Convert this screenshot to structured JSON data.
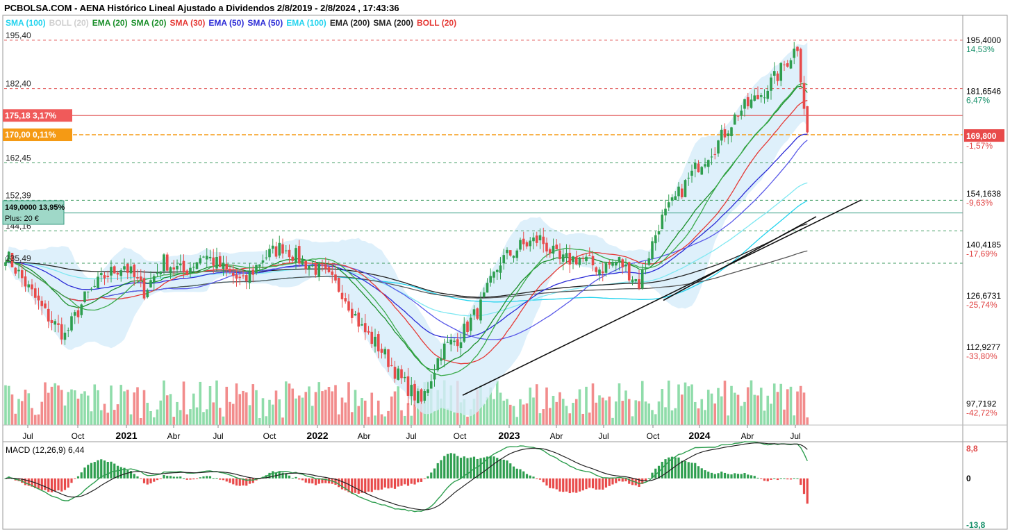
{
  "title": "PCBOLSA.COM - AENA Histórico Lineal Ajustado a Dividendos 2/8/2019 - 2/8/2024 , 17:43:36",
  "legend": [
    {
      "label": "SMA (100)",
      "color": "#22d3ee"
    },
    {
      "label": "BOLL (20)",
      "color": "#cfcfcf"
    },
    {
      "label": "EMA (20)",
      "color": "#1a8f2a"
    },
    {
      "label": "SMA (20)",
      "color": "#1a8f2a"
    },
    {
      "label": "SMA (30)",
      "color": "#e53935"
    },
    {
      "label": "EMA (50)",
      "color": "#2b2bd6"
    },
    {
      "label": "SMA (50)",
      "color": "#2b2bd6"
    },
    {
      "label": "EMA (100)",
      "color": "#22d3ee"
    },
    {
      "label": "EMA (200)",
      "color": "#222222"
    },
    {
      "label": "SMA (200)",
      "color": "#222222"
    },
    {
      "label": "BOLL (20)",
      "color": "#e53935"
    }
  ],
  "chart_data": {
    "type": "candlestick",
    "ylim": [
      92,
      198
    ],
    "x_ticks": [
      {
        "label": "Jul",
        "bold": false
      },
      {
        "label": "Oct",
        "bold": false
      },
      {
        "label": "2021",
        "bold": true
      },
      {
        "label": "Abr",
        "bold": false
      },
      {
        "label": "Jul",
        "bold": false
      },
      {
        "label": "Oct",
        "bold": false
      },
      {
        "label": "2022",
        "bold": true
      },
      {
        "label": "Abr",
        "bold": false
      },
      {
        "label": "Jul",
        "bold": false
      },
      {
        "label": "Oct",
        "bold": false
      },
      {
        "label": "2023",
        "bold": true
      },
      {
        "label": "Abr",
        "bold": false
      },
      {
        "label": "Jul",
        "bold": false
      },
      {
        "label": "Oct",
        "bold": false
      },
      {
        "label": "2024",
        "bold": true
      },
      {
        "label": "Abr",
        "bold": false
      },
      {
        "label": "Jul",
        "bold": false
      }
    ],
    "right_axis": [
      {
        "price": "195,4000",
        "pct": "14,53%",
        "dir": "up"
      },
      {
        "price": "181,6546",
        "pct": "6,47%",
        "dir": "up"
      },
      {
        "price": "154,1638",
        "pct": "-9,63%",
        "dir": "down"
      },
      {
        "price": "140,4185",
        "pct": "-17,69%",
        "dir": "down"
      },
      {
        "price": "126,6731",
        "pct": "-25,74%",
        "dir": "down"
      },
      {
        "price": "112,9277",
        "pct": "-33,80%",
        "dir": "down"
      },
      {
        "price": "97,7192",
        "pct": "-42,72%",
        "dir": "down"
      }
    ],
    "current_price": "169,800",
    "left_levels": [
      "195,40",
      "182,40",
      "162,45",
      "152,39",
      "144,16",
      "135,49"
    ],
    "markers": [
      {
        "label": "175,18  3,17%",
        "color": "#f05a5a"
      },
      {
        "label": "170,00  0,11%",
        "color": "#f59a14"
      },
      {
        "label": "149,0000  13,95%",
        "color": "#9fd8c8"
      },
      {
        "label": "Plus: 20 €",
        "color": "#9fd8c8"
      }
    ],
    "anchors": [
      [
        0,
        138
      ],
      [
        6,
        130
      ],
      [
        12,
        122
      ],
      [
        18,
        116
      ],
      [
        24,
        126
      ],
      [
        30,
        132
      ],
      [
        36,
        135
      ],
      [
        42,
        128
      ],
      [
        48,
        136
      ],
      [
        54,
        133
      ],
      [
        60,
        138
      ],
      [
        66,
        134
      ],
      [
        72,
        130
      ],
      [
        78,
        137
      ],
      [
        84,
        140
      ],
      [
        90,
        136
      ],
      [
        96,
        133
      ],
      [
        102,
        128
      ],
      [
        108,
        118
      ],
      [
        114,
        112
      ],
      [
        120,
        104
      ],
      [
        126,
        98
      ],
      [
        132,
        112
      ],
      [
        138,
        116
      ],
      [
        144,
        124
      ],
      [
        150,
        136
      ],
      [
        156,
        140
      ],
      [
        162,
        142
      ],
      [
        168,
        136
      ],
      [
        174,
        137
      ],
      [
        180,
        134
      ],
      [
        186,
        136
      ],
      [
        192,
        130
      ],
      [
        198,
        146
      ],
      [
        204,
        154
      ],
      [
        210,
        162
      ],
      [
        216,
        168
      ],
      [
        222,
        176
      ],
      [
        228,
        180
      ],
      [
        234,
        186
      ],
      [
        240,
        194
      ],
      [
        242,
        178
      ],
      [
        243,
        170
      ]
    ],
    "macd": {
      "label": "MACD (12,26,9)",
      "value": "6,44",
      "max": "8,8",
      "zero": "0",
      "min": "-13,8"
    }
  }
}
